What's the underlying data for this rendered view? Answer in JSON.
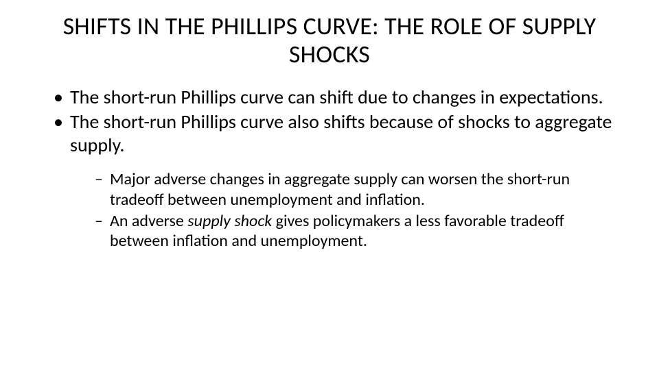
{
  "title": "SHIFTS IN THE PHILLIPS CURVE: THE ROLE OF SUPPLY SHOCKS",
  "bullets": [
    {
      "text": "The short-run Phillips curve can shift due to changes in expectations."
    },
    {
      "text": "The short-run Phillips curve also shifts because of shocks to aggregate supply."
    }
  ],
  "subbullets": [
    {
      "text": "Major adverse changes in aggregate supply can worsen the short-run tradeoff between unemployment and inflation."
    },
    {
      "pre": "An adverse ",
      "em": "supply shock",
      "post": " gives policymakers a less favorable tradeoff between inflation and unemployment."
    }
  ],
  "style": {
    "background_color": "#ffffff",
    "text_color": "#000000",
    "font_family": "Calibri",
    "title_fontsize": 36,
    "body_fontsize": 28,
    "sub_fontsize": 24,
    "bullet_glyph": "•",
    "subbullet_glyph": "–"
  }
}
